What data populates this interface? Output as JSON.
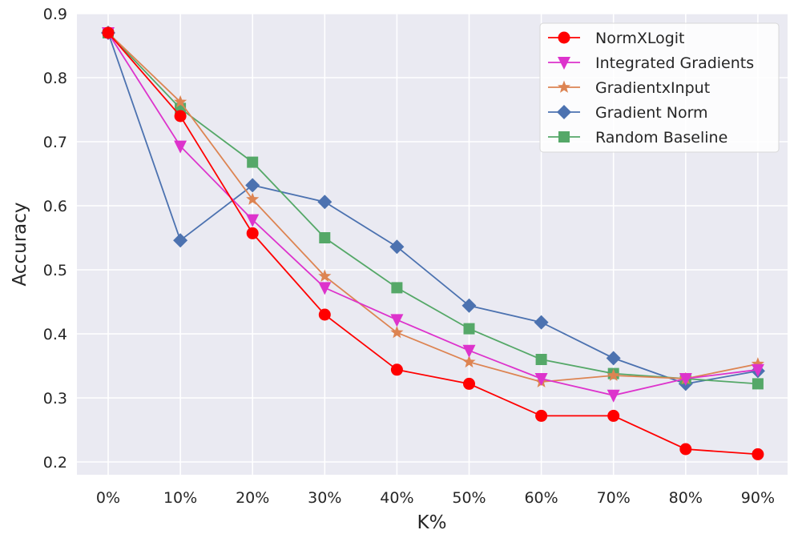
{
  "chart_data": {
    "type": "line",
    "title": "",
    "xlabel": "K%",
    "ylabel": "Accuracy",
    "categories": [
      "0%",
      "10%",
      "20%",
      "30%",
      "40%",
      "50%",
      "60%",
      "70%",
      "80%",
      "90%"
    ],
    "ylim": [
      0.18,
      0.9
    ],
    "yticks": [
      0.2,
      0.3,
      0.4,
      0.5,
      0.6,
      0.7,
      0.8,
      0.9
    ],
    "ytick_labels": [
      "0.2",
      "0.3",
      "0.4",
      "0.5",
      "0.6",
      "0.7",
      "0.8",
      "0.9"
    ],
    "grid": true,
    "legend_position": "top-right",
    "series": [
      {
        "name": "NormXLogit",
        "color": "#ff0000",
        "marker": "circle",
        "values": [
          0.87,
          0.74,
          0.557,
          0.43,
          0.344,
          0.322,
          0.272,
          0.272,
          0.22,
          0.212
        ]
      },
      {
        "name": "Integrated Gradients",
        "color": "#dd33cc",
        "marker": "triangle-down",
        "values": [
          0.87,
          0.693,
          0.578,
          0.472,
          0.422,
          0.374,
          0.33,
          0.304,
          0.33,
          0.344
        ]
      },
      {
        "name": "GradientxInput",
        "color": "#dd8452",
        "marker": "star",
        "values": [
          0.87,
          0.762,
          0.61,
          0.49,
          0.402,
          0.356,
          0.325,
          0.335,
          0.33,
          0.353
        ]
      },
      {
        "name": "Gradient Norm",
        "color": "#4c72b0",
        "marker": "diamond",
        "values": [
          0.87,
          0.546,
          0.632,
          0.606,
          0.536,
          0.444,
          0.418,
          0.362,
          0.322,
          0.342
        ]
      },
      {
        "name": "Random Baseline",
        "color": "#55a868",
        "marker": "square",
        "values": [
          0.87,
          0.752,
          0.668,
          0.55,
          0.472,
          0.408,
          0.36,
          0.338,
          0.33,
          0.322
        ]
      }
    ]
  }
}
